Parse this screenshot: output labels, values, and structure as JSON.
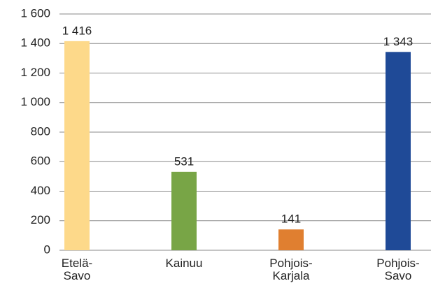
{
  "chart_data": {
    "type": "bar",
    "categories": [
      "Etelä-Savo",
      "Kainuu",
      "Pohjois-Karjala",
      "Pohjois-Savo"
    ],
    "values": [
      1416,
      531,
      141,
      1343
    ],
    "value_labels": [
      "1 416",
      "531",
      "141",
      "1 343"
    ],
    "colors": [
      "#fdd98a",
      "#78a546",
      "#e07f30",
      "#1f4a97"
    ],
    "ylim": [
      0,
      1600
    ],
    "yticks": [
      0,
      200,
      400,
      600,
      800,
      {
        "value": 1000,
        "label": "1 000"
      },
      {
        "value": 1200,
        "label": "1 200"
      },
      {
        "value": 1400,
        "label": "1 400"
      },
      {
        "value": 1600,
        "label": "1 600"
      }
    ],
    "grid": true
  }
}
